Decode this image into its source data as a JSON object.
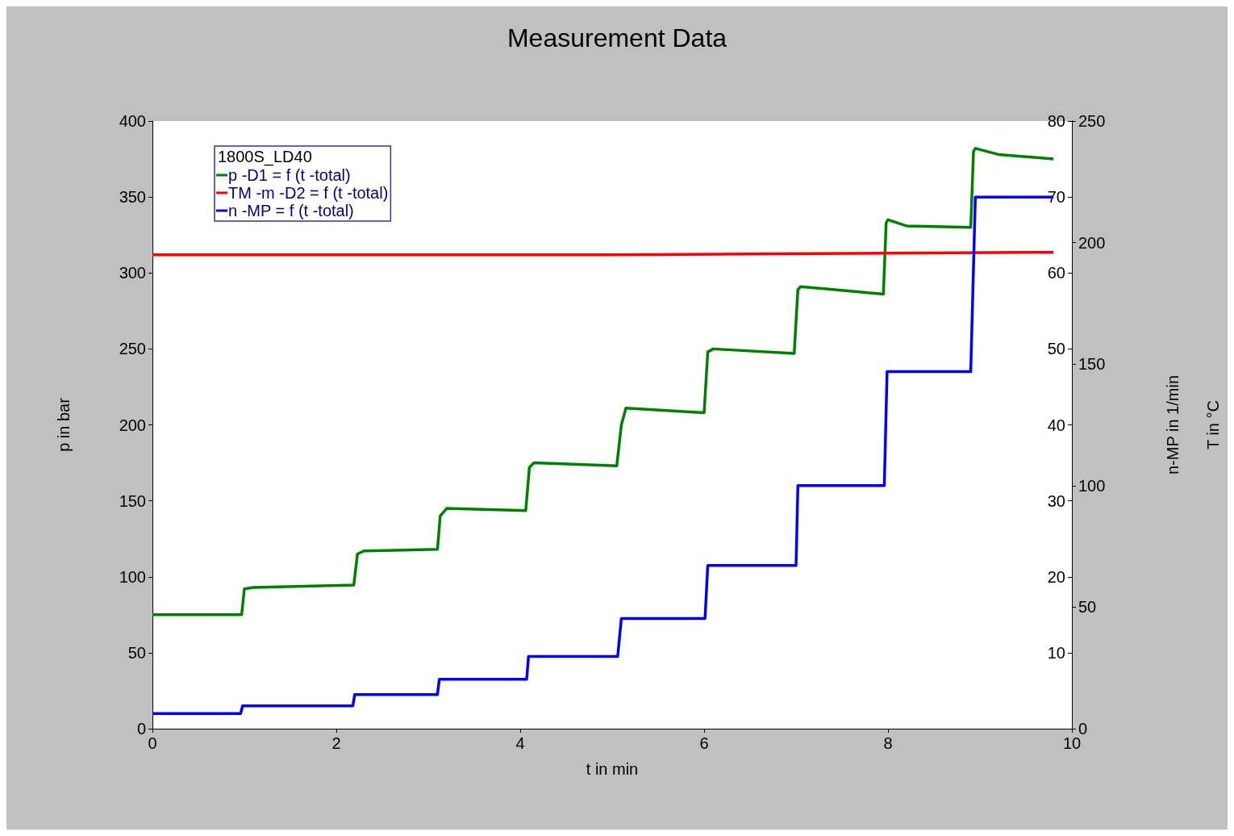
{
  "chart_data": {
    "type": "line",
    "title": "Measurement Data",
    "xlabel": "t in min",
    "ylabel": "p in bar",
    "y2label": "n-MP in 1/min",
    "y3label": "T in °C",
    "legend_title": "1800S_LD40",
    "legend": "top left",
    "xlim": [
      0,
      10
    ],
    "xticks": [
      0,
      2,
      4,
      6,
      8,
      10
    ],
    "ylim": [
      0,
      400
    ],
    "yticks": [
      0,
      50,
      100,
      150,
      200,
      250,
      300,
      350,
      400
    ],
    "y2lim": [
      0,
      80
    ],
    "y2ticks": [
      10,
      20,
      30,
      40,
      50,
      60,
      70,
      80
    ],
    "y3lim": [
      0,
      250
    ],
    "y3ticks": [
      0,
      50,
      100,
      150,
      200,
      250
    ],
    "series": [
      {
        "name": "p -D1 = f (t -total)",
        "color": "#008000",
        "axis": "y",
        "x": [
          0,
          0.97,
          1.0,
          1.1,
          2.19,
          2.23,
          2.3,
          3.1,
          3.13,
          3.2,
          4.06,
          4.1,
          4.15,
          5.05,
          5.1,
          5.15,
          6.0,
          6.04,
          6.1,
          6.98,
          7.02,
          7.05,
          7.95,
          7.98,
          8.0,
          8.2,
          8.9,
          8.93,
          8.95,
          9.2,
          9.8
        ],
        "values": [
          75,
          75,
          92,
          93,
          94.5,
          115,
          117,
          118,
          140,
          145,
          143.5,
          172,
          175,
          173,
          200,
          211,
          208,
          248,
          250,
          247,
          289,
          291,
          286,
          333,
          335,
          331,
          330,
          380,
          382,
          378,
          375
        ]
      },
      {
        "name": "TM -m -D2 = f (t -total)",
        "color": "#ff0000",
        "axis": "y3",
        "x": [
          0,
          5,
          9.8
        ],
        "values": [
          195,
          195,
          196
        ]
      },
      {
        "name": "n -MP = f (t -total)",
        "color": "#0000ff",
        "axis": "y2",
        "x": [
          0,
          0.96,
          0.98,
          2.18,
          2.2,
          3.1,
          3.12,
          4.07,
          4.09,
          5.06,
          5.1,
          6.01,
          6.04,
          7.0,
          7.02,
          7.96,
          7.99,
          8.9,
          8.95,
          9.8
        ],
        "values": [
          2,
          2,
          3,
          3,
          4.5,
          4.5,
          6.5,
          6.5,
          9.5,
          9.5,
          14.5,
          14.5,
          21.5,
          21.5,
          32,
          32,
          47,
          47,
          70,
          70
        ]
      }
    ]
  }
}
